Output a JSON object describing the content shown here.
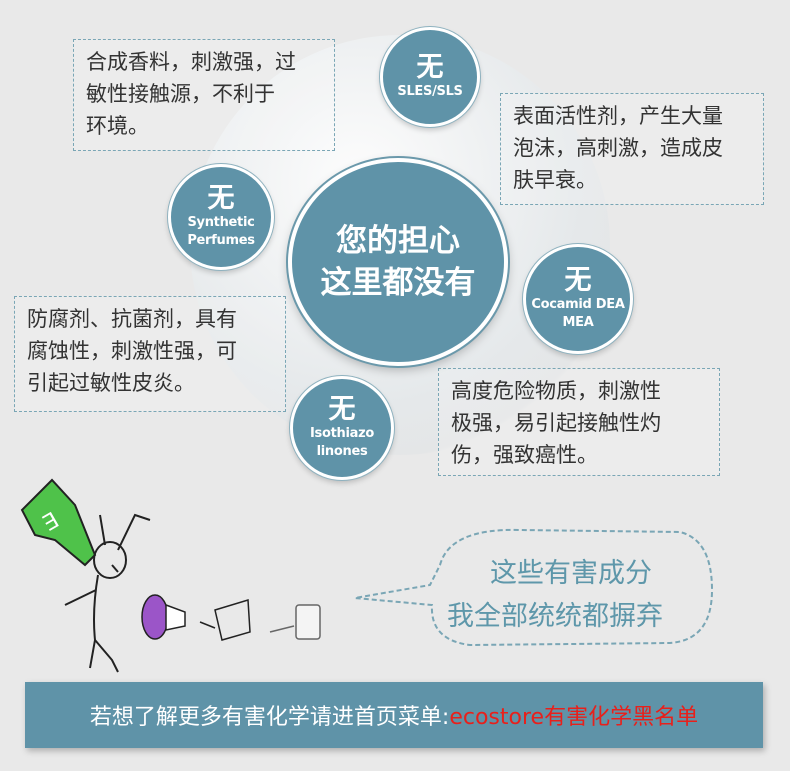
{
  "center": {
    "line1": "您的担心",
    "line2": "这里都没有"
  },
  "badges": [
    {
      "wu": "无",
      "name": "SLES/SLS"
    },
    {
      "wu": "无",
      "name_line1": "Synthetic",
      "name_line2": "Perfumes"
    },
    {
      "wu": "无",
      "name_line1": "Cocamid DEA",
      "name_line2": "MEA"
    },
    {
      "wu": "无",
      "name_line1": "Isothiazo",
      "name_line2": "linones"
    }
  ],
  "notes": {
    "perfume": "合成香料，刺激强，过\n敏性接触源，不利于\n环境。",
    "sles": "表面活性剂，产生大量\n泡沫，高刺激，造成皮\n肤早衰。",
    "preservative": "防腐剂、抗菌剂，具有\n腐蚀性，刺激性强，可\n引起过敏性皮炎。",
    "cocamid": "高度危险物质，刺激性\n极强，易引起接触性灼\n伤，强致癌性。"
  },
  "speech": {
    "line1": "这些有害成分",
    "line2": "我全部统统都摒弃"
  },
  "footer": {
    "text": "若想了解更多有害化学请进首页菜单: ",
    "highlight": "ecostore有害化学黑名单"
  },
  "colors": {
    "accent": "#5f93a8",
    "highlight": "#e8201b",
    "background": "#e9e9e9"
  }
}
